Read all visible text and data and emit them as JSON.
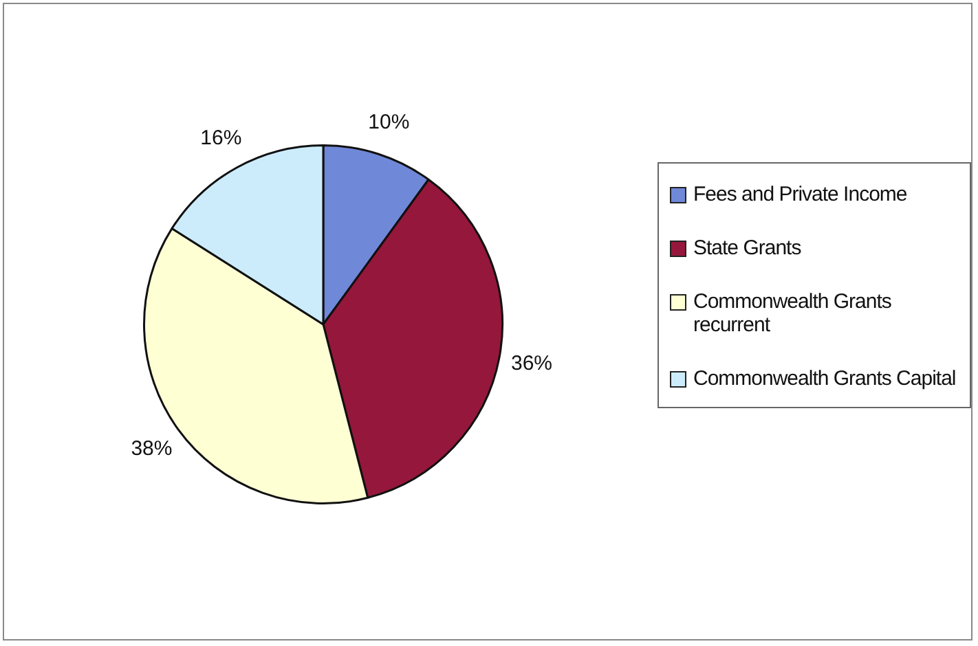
{
  "chart_data": {
    "type": "pie",
    "categories": [
      "Fees and Private Income",
      "State Grants",
      "Commonwealth Grants recurrent",
      "Commonwealth Grants Capital"
    ],
    "values": [
      10,
      36,
      38,
      16
    ],
    "colors": [
      "#7088d8",
      "#96173c",
      "#ffffd4",
      "#ccecfc"
    ],
    "value_labels": [
      "10%",
      "36%",
      "38%",
      "16%"
    ],
    "legend": "right"
  }
}
